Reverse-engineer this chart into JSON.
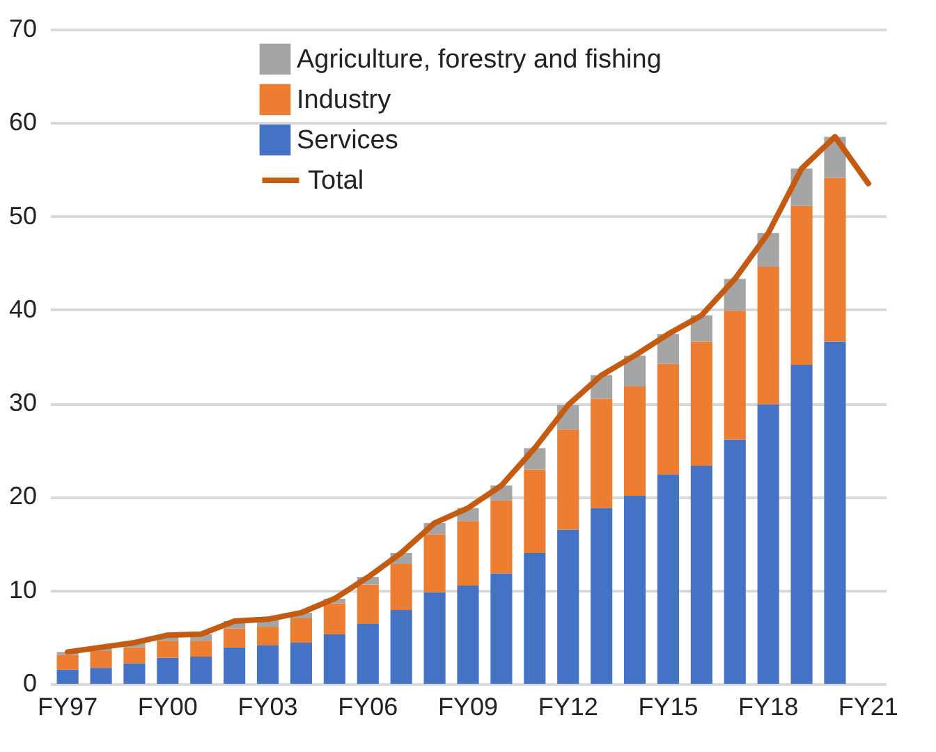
{
  "chart_data": {
    "type": "bar",
    "stacked": true,
    "categories": [
      "FY97",
      null,
      null,
      "FY00",
      null,
      null,
      "FY03",
      null,
      null,
      "FY06",
      null,
      null,
      "FY09",
      null,
      null,
      "FY12",
      null,
      null,
      "FY15",
      null,
      null,
      "FY18",
      null,
      null,
      "FY21"
    ],
    "series": [
      {
        "name": "Services",
        "color": "#4472c4",
        "values": [
          1.5,
          1.7,
          2.2,
          2.8,
          2.9,
          3.9,
          4.1,
          4.4,
          5.3,
          6.4,
          7.9,
          9.8,
          10.5,
          11.8,
          14.0,
          16.5,
          18.8,
          20.1,
          22.4,
          23.3,
          26.1,
          29.9,
          34.1,
          36.6,
          null
        ]
      },
      {
        "name": "Industry",
        "color": "#ed7d31",
        "values": [
          1.6,
          1.8,
          1.7,
          1.8,
          1.7,
          2.0,
          2.0,
          2.6,
          3.3,
          4.2,
          4.9,
          6.2,
          6.9,
          7.8,
          8.9,
          10.7,
          11.7,
          11.7,
          11.8,
          13.3,
          13.8,
          14.7,
          17.0,
          17.5,
          null
        ]
      },
      {
        "name": "Agriculture, forestry and fishing",
        "color": "#a5a5a5",
        "values": [
          0.3,
          0.4,
          0.5,
          0.6,
          0.7,
          0.8,
          0.8,
          0.6,
          0.5,
          0.8,
          1.2,
          1.2,
          1.4,
          1.6,
          2.3,
          2.6,
          2.5,
          3.3,
          3.2,
          2.8,
          3.4,
          3.6,
          4.0,
          4.4,
          null
        ]
      },
      {
        "name": "Total",
        "type": "line",
        "color": "#c55a11",
        "values": [
          3.4,
          3.9,
          4.4,
          5.2,
          5.3,
          6.7,
          6.9,
          7.6,
          9.1,
          11.4,
          14.0,
          17.2,
          18.8,
          21.2,
          25.2,
          29.8,
          33.0,
          35.1,
          37.4,
          39.4,
          43.3,
          48.2,
          55.1,
          58.5,
          53.5
        ]
      }
    ],
    "ylim": [
      0,
      70
    ],
    "yticks": [
      0,
      10,
      20,
      30,
      40,
      50,
      60,
      70
    ],
    "grid": "y",
    "legend": "top left",
    "marker": "none",
    "line_style": "solid"
  }
}
